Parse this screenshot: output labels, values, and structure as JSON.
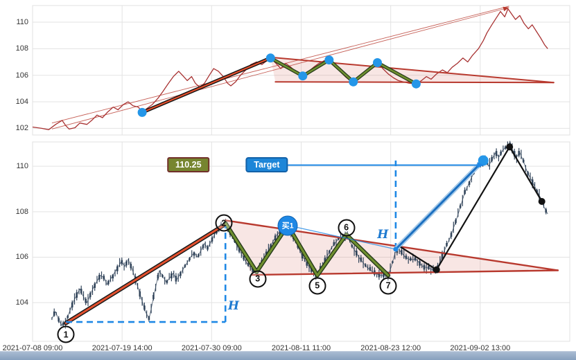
{
  "axes": {
    "x_tick_labels": [
      "2021-07-08 09:00",
      "2021-07-19 14:00",
      "2021-07-30 09:00",
      "2021-08-11 11:00",
      "2021-08-23 12:00",
      "2021-09-02 13:00"
    ],
    "top_y_ticks": [
      102,
      104,
      106,
      108,
      110
    ],
    "bottom_y_ticks": [
      104,
      106,
      108,
      110
    ]
  },
  "chart_data": [
    {
      "panel": "top",
      "type": "line",
      "ylim": [
        101.5,
        111.25
      ],
      "y_ticks": [
        102,
        104,
        106,
        108,
        110
      ],
      "series": [
        {
          "name": "price",
          "color": "#a83232",
          "points": [
            [
              0,
              102.1
            ],
            [
              0.017,
              102
            ],
            [
              0.03,
              101.9
            ],
            [
              0.043,
              102.3
            ],
            [
              0.055,
              102.6
            ],
            [
              0.062,
              102.2
            ],
            [
              0.068,
              101.95
            ],
            [
              0.079,
              102.05
            ],
            [
              0.088,
              102.4
            ],
            [
              0.101,
              102.3
            ],
            [
              0.11,
              102.6
            ],
            [
              0.12,
              103
            ],
            [
              0.13,
              102.8
            ],
            [
              0.139,
              103.2
            ],
            [
              0.15,
              103.6
            ],
            [
              0.159,
              103.4
            ],
            [
              0.169,
              103.8
            ],
            [
              0.178,
              104
            ],
            [
              0.187,
              103.7
            ],
            [
              0.197,
              103.6
            ],
            [
              0.204,
              103.2
            ],
            [
              0.213,
              103.5
            ],
            [
              0.223,
              103.8
            ],
            [
              0.234,
              104.3
            ],
            [
              0.243,
              104.8
            ],
            [
              0.253,
              105.4
            ],
            [
              0.262,
              105.9
            ],
            [
              0.272,
              106.3
            ],
            [
              0.279,
              106
            ],
            [
              0.288,
              105.6
            ],
            [
              0.296,
              105.9
            ],
            [
              0.303,
              105.4
            ],
            [
              0.311,
              105.1
            ],
            [
              0.32,
              105.4
            ],
            [
              0.329,
              106
            ],
            [
              0.337,
              106.5
            ],
            [
              0.346,
              106.3
            ],
            [
              0.355,
              105.9
            ],
            [
              0.363,
              105.4
            ],
            [
              0.369,
              105.2
            ],
            [
              0.378,
              105.5
            ],
            [
              0.387,
              106
            ],
            [
              0.397,
              106.4
            ],
            [
              0.406,
              106.8
            ],
            [
              0.417,
              107
            ],
            [
              0.427,
              106.8
            ],
            [
              0.436,
              107.1
            ],
            [
              0.443,
              107.3
            ],
            [
              0.453,
              106.9
            ],
            [
              0.462,
              106.5
            ],
            [
              0.471,
              106.9
            ],
            [
              0.481,
              106.6
            ],
            [
              0.492,
              106.2
            ],
            [
              0.503,
              105.95
            ],
            [
              0.514,
              106.3
            ],
            [
              0.523,
              106.6
            ],
            [
              0.533,
              106.9
            ],
            [
              0.543,
              107.1
            ],
            [
              0.552,
              107.15
            ],
            [
              0.561,
              106.8
            ],
            [
              0.572,
              106.3
            ],
            [
              0.582,
              105.9
            ],
            [
              0.591,
              105.6
            ],
            [
              0.597,
              105.5
            ],
            [
              0.608,
              105.8
            ],
            [
              0.617,
              106.1
            ],
            [
              0.626,
              106.5
            ],
            [
              0.636,
              106.8
            ],
            [
              0.642,
              106.95
            ],
            [
              0.652,
              106.5
            ],
            [
              0.662,
              106.1
            ],
            [
              0.672,
              105.8
            ],
            [
              0.681,
              105.6
            ],
            [
              0.69,
              105.5
            ],
            [
              0.701,
              105.4
            ],
            [
              0.714,
              105.35
            ],
            [
              0.724,
              105.6
            ],
            [
              0.733,
              105.9
            ],
            [
              0.742,
              105.7
            ],
            [
              0.752,
              106.1
            ],
            [
              0.763,
              106.4
            ],
            [
              0.772,
              106.2
            ],
            [
              0.781,
              106.6
            ],
            [
              0.791,
              106.9
            ],
            [
              0.801,
              107.3
            ],
            [
              0.81,
              107
            ],
            [
              0.819,
              107.5
            ],
            [
              0.83,
              108
            ],
            [
              0.839,
              108.6
            ],
            [
              0.846,
              109.2
            ],
            [
              0.855,
              109.8
            ],
            [
              0.863,
              110.3
            ],
            [
              0.871,
              110.8
            ],
            [
              0.879,
              110.4
            ],
            [
              0.885,
              111
            ],
            [
              0.892,
              110.6
            ],
            [
              0.899,
              110.2
            ],
            [
              0.907,
              110.5
            ],
            [
              0.915,
              109.9
            ],
            [
              0.923,
              109.5
            ],
            [
              0.93,
              109.8
            ],
            [
              0.938,
              109.3
            ],
            [
              0.946,
              108.8
            ],
            [
              0.953,
              108.3
            ],
            [
              0.959,
              108
            ]
          ]
        }
      ],
      "pivot_dots": [
        [
          0.204,
          103.2
        ],
        [
          0.443,
          107.3
        ],
        [
          0.503,
          105.95
        ],
        [
          0.552,
          107.15
        ],
        [
          0.597,
          105.5
        ],
        [
          0.642,
          106.95
        ],
        [
          0.714,
          105.35
        ]
      ],
      "flagpole": {
        "from": [
          0.204,
          103.2
        ],
        "to": [
          0.443,
          107.3
        ]
      },
      "zigzag": [
        [
          0.443,
          107.3
        ],
        [
          0.503,
          105.95
        ],
        [
          0.552,
          107.15
        ],
        [
          0.597,
          105.5
        ],
        [
          0.642,
          106.95
        ],
        [
          0.714,
          105.35
        ]
      ],
      "pennant": {
        "upper_from": [
          0.443,
          107.35
        ],
        "lower_from": [
          0.452,
          105.5
        ],
        "apex": [
          0.97,
          105.45
        ]
      },
      "channel_lines": [
        [
          [
            0.036,
            101.95
          ],
          [
            0.887,
            111.1
          ]
        ],
        [
          [
            0.036,
            102.4
          ],
          [
            0.887,
            111.2
          ]
        ]
      ]
    },
    {
      "panel": "bottom",
      "type": "candlestick",
      "ylim": [
        102.3,
        111.07
      ],
      "y_ticks": [
        104,
        106,
        108,
        110
      ],
      "price_path": [
        [
          0.036,
          103.3
        ],
        [
          0.043,
          103.6
        ],
        [
          0.049,
          103.2
        ],
        [
          0.055,
          103
        ],
        [
          0.062,
          103.15
        ],
        [
          0.075,
          104
        ],
        [
          0.088,
          104.6
        ],
        [
          0.094,
          104.3
        ],
        [
          0.101,
          104
        ],
        [
          0.114,
          104.7
        ],
        [
          0.126,
          105.2
        ],
        [
          0.133,
          105.1
        ],
        [
          0.139,
          104.8
        ],
        [
          0.152,
          105.3
        ],
        [
          0.165,
          105.8
        ],
        [
          0.172,
          105.6
        ],
        [
          0.178,
          105.9
        ],
        [
          0.185,
          105.5
        ],
        [
          0.197,
          104.6
        ],
        [
          0.21,
          103.6
        ],
        [
          0.217,
          103.3
        ],
        [
          0.23,
          104.8
        ],
        [
          0.236,
          105.4
        ],
        [
          0.249,
          104.9
        ],
        [
          0.262,
          105.3
        ],
        [
          0.268,
          105
        ],
        [
          0.281,
          105.5
        ],
        [
          0.294,
          106
        ],
        [
          0.301,
          106.2
        ],
        [
          0.307,
          106
        ],
        [
          0.32,
          106.6
        ],
        [
          0.326,
          106.4
        ],
        [
          0.339,
          107
        ],
        [
          0.352,
          107.4
        ],
        [
          0.359,
          107.5
        ],
        [
          0.372,
          106.9
        ],
        [
          0.385,
          106.3
        ],
        [
          0.397,
          105.8
        ],
        [
          0.41,
          105.4
        ],
        [
          0.417,
          105.35
        ],
        [
          0.43,
          105.9
        ],
        [
          0.443,
          106.5
        ],
        [
          0.455,
          107
        ],
        [
          0.468,
          107.3
        ],
        [
          0.475,
          107.4
        ],
        [
          0.488,
          106.8
        ],
        [
          0.501,
          106.1
        ],
        [
          0.514,
          105.6
        ],
        [
          0.526,
          105.25
        ],
        [
          0.53,
          105.2
        ],
        [
          0.543,
          105.8
        ],
        [
          0.556,
          106.4
        ],
        [
          0.569,
          106.8
        ],
        [
          0.584,
          107
        ],
        [
          0.597,
          106.4
        ],
        [
          0.61,
          105.9
        ],
        [
          0.623,
          105.55
        ],
        [
          0.636,
          105.3
        ],
        [
          0.649,
          105.2
        ],
        [
          0.662,
          105.2
        ],
        [
          0.668,
          105.6
        ],
        [
          0.675,
          106.2
        ],
        [
          0.681,
          106.35
        ],
        [
          0.694,
          106
        ],
        [
          0.701,
          105.9
        ],
        [
          0.714,
          105.9
        ],
        [
          0.726,
          105.6
        ],
        [
          0.739,
          105.5
        ],
        [
          0.752,
          105.4
        ],
        [
          0.765,
          106.2
        ],
        [
          0.778,
          106.9
        ],
        [
          0.791,
          107.8
        ],
        [
          0.804,
          108.8
        ],
        [
          0.817,
          109.5
        ],
        [
          0.83,
          110.1
        ],
        [
          0.843,
          110.3
        ],
        [
          0.849,
          110
        ],
        [
          0.855,
          110.3
        ],
        [
          0.862,
          110.6
        ],
        [
          0.868,
          110.4
        ],
        [
          0.875,
          110.7
        ],
        [
          0.888,
          111
        ],
        [
          0.894,
          110.7
        ],
        [
          0.901,
          110.4
        ],
        [
          0.907,
          110.6
        ],
        [
          0.914,
          110.2
        ],
        [
          0.92,
          109.8
        ],
        [
          0.926,
          109.5
        ],
        [
          0.933,
          109.2
        ],
        [
          0.939,
          108.9
        ],
        [
          0.946,
          108.6
        ],
        [
          0.952,
          108.2
        ],
        [
          0.959,
          107.9
        ]
      ],
      "flagpole": {
        "from": [
          0.062,
          103.1
        ],
        "to": [
          0.359,
          107.45
        ]
      },
      "zigzag": [
        [
          0.359,
          107.5
        ],
        [
          0.417,
          105.35
        ],
        [
          0.475,
          107.4
        ],
        [
          0.53,
          105.2
        ],
        [
          0.584,
          107
        ],
        [
          0.662,
          105.2
        ]
      ],
      "pennant": {
        "upper_from": [
          0.359,
          107.62
        ],
        "lower_from": [
          0.408,
          105.22
        ],
        "apex": [
          0.978,
          105.42
        ]
      },
      "measure_dashes": [
        [
          [
            0.062,
            103.15
          ],
          [
            0.359,
            103.15
          ]
        ],
        [
          [
            0.359,
            103.15
          ],
          [
            0.359,
            107.35
          ]
        ],
        [
          [
            0.676,
            106.35
          ],
          [
            0.676,
            110.25
          ]
        ]
      ],
      "signal_line": [
        [
          0.475,
          107.4
        ],
        [
          0.676,
          106.35
        ]
      ],
      "projection_line": [
        [
          0.676,
          106.35
        ],
        [
          0.839,
          110.25
        ]
      ],
      "post_breakout_line": [
        [
          0.685,
          106.45
        ],
        [
          0.752,
          105.45
        ],
        [
          0.888,
          110.85
        ],
        [
          0.948,
          108.45
        ]
      ],
      "black_dots": [
        [
          0.752,
          105.45
        ],
        [
          0.888,
          110.85
        ],
        [
          0.948,
          108.45
        ]
      ],
      "breakout_dot": [
        0.676,
        106.35
      ],
      "target_dot": [
        0.839,
        110.25
      ],
      "target_arrow": {
        "y_price": 110.05,
        "from_x": 0.475,
        "to_x": 0.828
      }
    }
  ],
  "annotations": {
    "measured_price": "110.25",
    "measured_pos": [
      0.29,
      110.05
    ],
    "target_label": "Target",
    "target_pos": [
      0.436,
      110.05
    ],
    "buy_label": "买1",
    "buy_pos": [
      0.475,
      107.4
    ],
    "height_symbol": "H",
    "h_positions": [
      [
        0.374,
        103.85
      ],
      [
        0.652,
        107.0
      ]
    ],
    "wave_markers": [
      {
        "label": "1",
        "pos": [
          0.062,
          102.6
        ]
      },
      {
        "label": "2",
        "pos": [
          0.356,
          107.5
        ]
      },
      {
        "label": "3",
        "pos": [
          0.419,
          105.05
        ]
      },
      {
        "label": "5",
        "pos": [
          0.53,
          104.75
        ]
      },
      {
        "label": "6",
        "pos": [
          0.584,
          107.3
        ]
      },
      {
        "label": "7",
        "pos": [
          0.662,
          104.75
        ]
      }
    ]
  },
  "colors": {
    "price_line": "#a83232",
    "trend": "#b8392e",
    "pole_core": "#e3502e",
    "zigzag_core": "#6f8f2f",
    "zigzag_edge": "#24381a",
    "blue": "#1e88e5",
    "projection_core": "#1b6fc0",
    "projection_halo": "#a5c9e8",
    "pennant_fill": "rgba(214,98,84,0.16)",
    "candle": "#31445a",
    "black": "#121212",
    "pivot_dot": "#2496e8",
    "grid": "#e3e3e3",
    "tick_text": "#333333"
  }
}
